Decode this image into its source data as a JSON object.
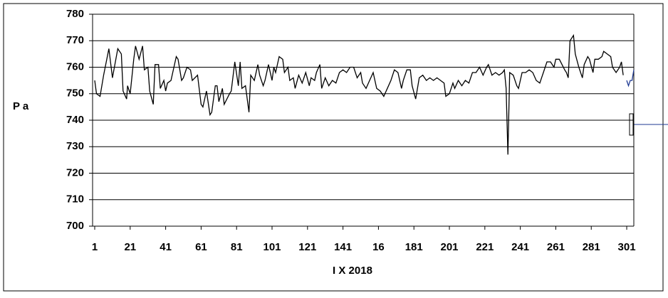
{
  "chart_data": {
    "type": "line",
    "y_label": "P a",
    "x_label": "I X 2018",
    "xlim": [
      1,
      305
    ],
    "ylim": [
      700,
      780
    ],
    "yticks": [
      700,
      710,
      720,
      730,
      740,
      750,
      760,
      770,
      780
    ],
    "xticks": [
      1,
      21,
      41,
      61,
      81,
      101,
      121,
      141,
      {
        "value": 161,
        "label": "16"
      },
      181,
      201,
      221,
      241,
      261,
      281,
      301
    ],
    "grid": true,
    "series": [
      {
        "color": "#000000",
        "x": [
          1,
          2,
          4,
          6,
          9,
          11,
          14,
          16,
          17,
          19,
          19.5,
          21,
          23,
          24,
          26,
          28,
          29,
          31,
          32,
          34,
          35,
          37,
          38,
          40,
          41,
          42,
          44,
          47,
          48,
          50,
          51,
          53,
          55,
          56,
          59,
          61,
          62,
          64,
          66,
          67,
          69,
          70,
          71,
          73,
          74,
          77,
          78,
          80,
          82,
          83,
          84,
          86,
          88,
          89,
          91,
          93,
          94,
          96,
          97,
          99,
          101,
          102,
          103,
          105,
          107,
          108,
          110,
          111,
          113,
          114,
          116,
          118,
          120,
          122,
          123,
          125,
          126,
          128,
          129,
          131,
          133,
          135,
          137,
          139,
          141,
          143,
          145,
          147,
          149,
          151,
          152,
          154,
          156,
          158,
          160,
          162,
          164,
          166,
          168,
          170,
          172,
          174,
          175,
          177,
          179,
          180,
          182,
          184,
          186,
          188,
          190,
          192,
          194,
          196,
          198,
          199,
          201,
          203,
          204,
          206,
          208,
          210,
          212,
          214,
          216,
          218,
          220,
          222,
          223,
          225,
          227,
          229,
          231,
          232,
          233,
          234,
          235,
          237,
          239,
          240,
          242,
          244,
          246,
          248,
          250,
          252,
          254,
          256,
          258,
          260,
          261,
          263,
          266,
          267,
          268,
          269,
          271,
          272,
          274,
          276,
          277,
          279,
          280,
          282,
          283,
          285,
          287,
          288,
          290,
          292,
          293,
          295,
          297,
          298,
          299
        ],
        "values": [
          755,
          750,
          749,
          757,
          767,
          756,
          767,
          765,
          751,
          748,
          753,
          750,
          763,
          768,
          763,
          768,
          759,
          760,
          751,
          746,
          761,
          761,
          752,
          755,
          751,
          754,
          755,
          764,
          763,
          755,
          756,
          760,
          759,
          755,
          757,
          746,
          745,
          751,
          742,
          743,
          753,
          753,
          747,
          752,
          746,
          750,
          751,
          762,
          753,
          762,
          752,
          753,
          743,
          757,
          755,
          761,
          757,
          753,
          755,
          761,
          755,
          760,
          758,
          764,
          763,
          758,
          760,
          755,
          756,
          752,
          757,
          754,
          758,
          753,
          756,
          755,
          758,
          761,
          752,
          756,
          753,
          755,
          754,
          758,
          759,
          758,
          760,
          760,
          756,
          758,
          754,
          752,
          755,
          758,
          752,
          751,
          749,
          752,
          755,
          759,
          758,
          752,
          755,
          759,
          759,
          753,
          748,
          756,
          757,
          755,
          756,
          755,
          756,
          755,
          754,
          749,
          750,
          754,
          752,
          755,
          753,
          755,
          754,
          758,
          758,
          760,
          757,
          760,
          761,
          757,
          758,
          757,
          758,
          759,
          752,
          727,
          758,
          757,
          753,
          752,
          758,
          758,
          759,
          758,
          755,
          754,
          758,
          762,
          762,
          760,
          763,
          763,
          759,
          758,
          756,
          770,
          772,
          765,
          760,
          756,
          761,
          764,
          763,
          758,
          763,
          763,
          764,
          766,
          765,
          764,
          760,
          758,
          760,
          762,
          757
        ]
      },
      {
        "color": "#1f3a93",
        "x": [
          301,
          302,
          303,
          304,
          305
        ],
        "values": [
          755,
          753,
          755,
          755,
          759
        ]
      }
    ]
  }
}
